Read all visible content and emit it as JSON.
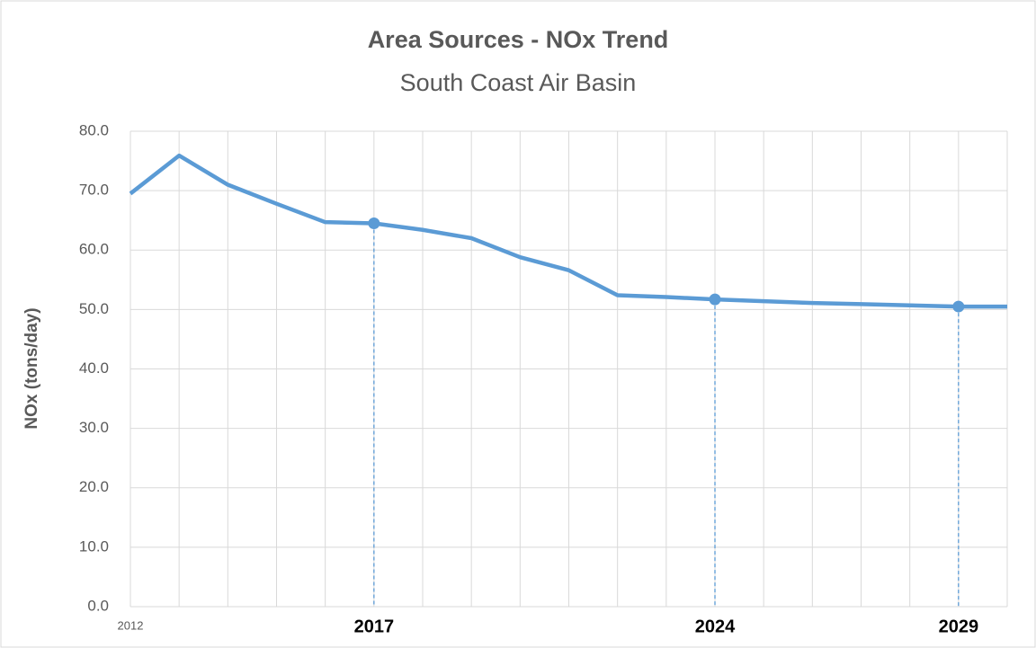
{
  "chart_data": {
    "type": "line",
    "title": "Area Sources - NOx Trend",
    "subtitle": "South Coast Air Basin",
    "y_label": "NOx (tons/day)",
    "categories": [
      "2012",
      null,
      null,
      null,
      null,
      "2017",
      null,
      null,
      null,
      null,
      null,
      null,
      "2024",
      null,
      null,
      null,
      null,
      "2029",
      null
    ],
    "values": [
      69.5,
      75.9,
      71.0,
      67.8,
      64.7,
      64.5,
      63.4,
      62.0,
      58.8,
      56.6,
      52.4,
      52.1,
      51.7,
      51.4,
      51.1,
      50.9,
      50.7,
      50.5,
      50.5
    ],
    "color": "#5b9bd5",
    "highlights": [
      5,
      12,
      17
    ],
    "ylim": [
      0,
      80
    ],
    "yticks": [
      {
        "value": 0,
        "label": "0.0"
      },
      {
        "value": 10,
        "label": "10.0"
      },
      {
        "value": 20,
        "label": "20.0"
      },
      {
        "value": 30,
        "label": "30.0"
      },
      {
        "value": 40,
        "label": "40.0"
      },
      {
        "value": 50,
        "label": "50.0"
      },
      {
        "value": 60,
        "label": "60.0"
      },
      {
        "value": 70,
        "label": "70.0"
      },
      {
        "value": 80,
        "label": "80.0"
      }
    ],
    "grid": true
  }
}
